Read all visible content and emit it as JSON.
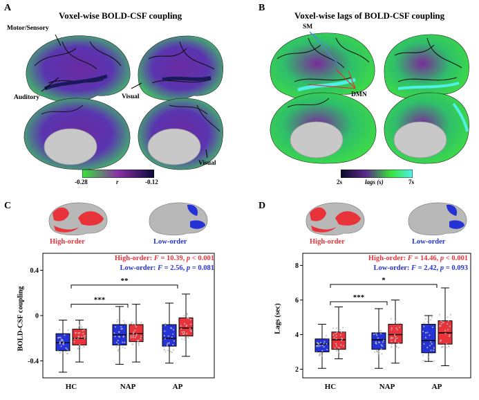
{
  "panelA": {
    "letter": "A",
    "title": "Voxel-wise BOLD-CSF coupling",
    "labels": {
      "motor": "Motor/Sensory",
      "auditory": "Auditory",
      "visual1": "Visual",
      "visual2": "Visual"
    },
    "colorbar": {
      "min": "-0.28",
      "mid": "r",
      "max": "-0.12"
    }
  },
  "panelB": {
    "letter": "B",
    "title": "Voxel-wise lags of BOLD-CSF coupling",
    "labels": {
      "sm": "SM",
      "dmn": "DMN"
    },
    "colorbar": {
      "min": "2s",
      "mid": "lags (s)",
      "max": "7s"
    }
  },
  "panelC": {
    "letter": "C",
    "high_label": "High-order",
    "low_label": "Low-order",
    "stats_high_prefix": "High-order: ",
    "stats_high_F": "F",
    "stats_high_mid": " = 10.39, ",
    "stats_high_p": "p",
    "stats_high_end": " < 0.001",
    "stats_low_prefix": "Low-order: ",
    "stats_low_F": "F",
    "stats_low_mid": " = 2.56, ",
    "stats_low_p": "p",
    "stats_low_end": " = 0.081",
    "ylabel": "BOLD-CSF coupling",
    "yticks": [
      "0.4",
      "0",
      "-0.4"
    ],
    "categories": [
      "HC",
      "NAP",
      "AP"
    ],
    "sig": [
      {
        "label": "***"
      },
      {
        "label": "**"
      }
    ]
  },
  "panelD": {
    "letter": "D",
    "high_label": "High-order",
    "low_label": "Low-order",
    "stats_high_prefix": "High-order: ",
    "stats_high_F": "F",
    "stats_high_mid": " = 14.46, ",
    "stats_high_p": "p",
    "stats_high_end": " < 0.001",
    "stats_low_prefix": "Low-order: ",
    "stats_low_F": "F",
    "stats_low_mid": " = 2.42, ",
    "stats_low_p": "p",
    "stats_low_end": " = 0.093",
    "ylabel": "Lags (sec)",
    "yticks": [
      "8",
      "6",
      "4",
      "2"
    ],
    "categories": [
      "HC",
      "NAP",
      "AP"
    ],
    "sig": [
      {
        "label": "***"
      },
      {
        "label": "*"
      }
    ]
  },
  "colors": {
    "high": "#e8333a",
    "low": "#2533d6",
    "box_edge": "#000000"
  },
  "chart_data": [
    {
      "type": "box",
      "panel": "C",
      "ylabel": "BOLD-CSF coupling",
      "ylim": [
        -0.55,
        0.55
      ],
      "categories": [
        "HC",
        "NAP",
        "AP"
      ],
      "series": [
        {
          "name": "Low-order",
          "boxes": [
            {
              "min": -0.5,
              "q1": -0.31,
              "median": -0.24,
              "q3": -0.16,
              "max": -0.04
            },
            {
              "min": -0.43,
              "q1": -0.26,
              "median": -0.17,
              "q3": -0.08,
              "max": 0.08
            },
            {
              "min": -0.42,
              "q1": -0.27,
              "median": -0.2,
              "q3": -0.08,
              "max": 0.11
            }
          ]
        },
        {
          "name": "High-order",
          "boxes": [
            {
              "min": -0.41,
              "q1": -0.26,
              "median": -0.2,
              "q3": -0.12,
              "max": -0.04
            },
            {
              "min": -0.41,
              "q1": -0.23,
              "median": -0.16,
              "q3": -0.08,
              "max": 0.1
            },
            {
              "min": -0.36,
              "q1": -0.18,
              "median": -0.11,
              "q3": -0.02,
              "max": 0.19
            }
          ]
        }
      ],
      "significance": [
        {
          "from": "HC",
          "to": "NAP",
          "label": "***"
        },
        {
          "from": "HC",
          "to": "AP",
          "label": "**"
        }
      ]
    },
    {
      "type": "box",
      "panel": "D",
      "ylabel": "Lags (sec)",
      "ylim": [
        1.5,
        8.7
      ],
      "categories": [
        "HC",
        "NAP",
        "AP"
      ],
      "series": [
        {
          "name": "Low-order",
          "boxes": [
            {
              "min": 2.05,
              "q1": 3.0,
              "median": 3.45,
              "q3": 3.75,
              "max": 4.6
            },
            {
              "min": 2.05,
              "q1": 3.15,
              "median": 3.7,
              "q3": 4.1,
              "max": 5.5
            },
            {
              "min": 2.45,
              "q1": 2.95,
              "median": 3.65,
              "q3": 4.6,
              "max": 5.1
            }
          ]
        },
        {
          "name": "High-order",
          "boxes": [
            {
              "min": 2.6,
              "q1": 3.15,
              "median": 3.7,
              "q3": 4.15,
              "max": 5.6
            },
            {
              "min": 2.35,
              "q1": 3.5,
              "median": 4.0,
              "q3": 4.6,
              "max": 6.0
            },
            {
              "min": 2.2,
              "q1": 3.45,
              "median": 4.1,
              "q3": 4.8,
              "max": 6.7
            }
          ]
        }
      ],
      "significance": [
        {
          "from": "HC",
          "to": "NAP",
          "label": "***"
        },
        {
          "from": "HC",
          "to": "AP",
          "label": "*"
        }
      ]
    }
  ]
}
